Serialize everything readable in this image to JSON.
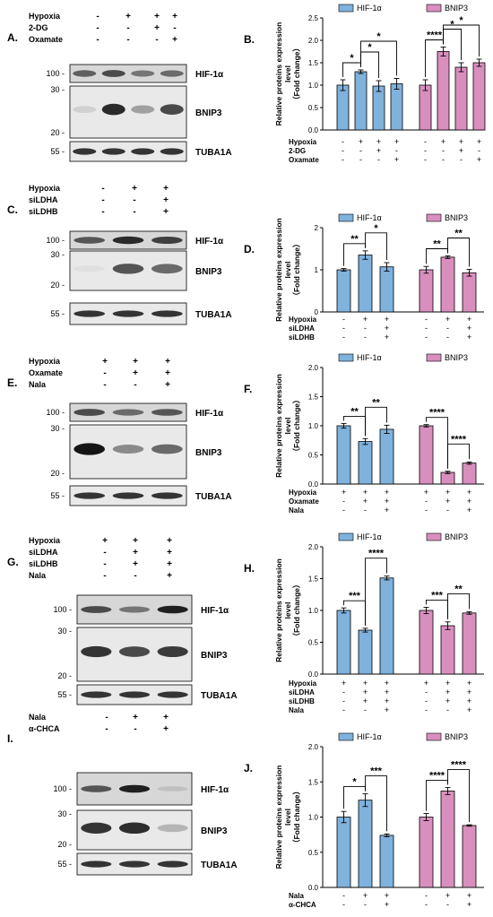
{
  "colors": {
    "hif": "#7fb2dc",
    "bnip": "#d98fbe",
    "ink": "#000000"
  },
  "labels": {
    "hif_legend": "HIF-1α",
    "bnip_legend": "BNIP3",
    "ylabel_main": "Relative proteins expression",
    "ylabel_level": "level",
    "ylabel_fold": "（Fold change）"
  },
  "blot_labels": {
    "hif": "HIF-1α",
    "bnip": "BNIP3",
    "tuba": "TUBA1A"
  },
  "panels": [
    {
      "letter": "A.",
      "chart_letter": "B.",
      "conditions": [
        {
          "name": "Hypoxia",
          "signs": [
            "-",
            "+",
            "+",
            "+"
          ]
        },
        {
          "name": "2-DG",
          "signs": [
            "-",
            "-",
            "+",
            "-"
          ]
        },
        {
          "name": "Oxamate",
          "signs": [
            "-",
            "-",
            "-",
            "+"
          ]
        }
      ],
      "markers": {
        "hif": "100",
        "bnip_hi": "30",
        "bnip_lo": "20",
        "tuba": "55"
      }
    },
    {
      "letter": "C.",
      "chart_letter": "D.",
      "conditions": [
        {
          "name": "Hypoxia",
          "signs": [
            "-",
            "+",
            "+"
          ]
        },
        {
          "name": "siLDHA",
          "signs": [
            "-",
            "-",
            "+"
          ]
        },
        {
          "name": "siLDHB",
          "signs": [
            "-",
            "-",
            "+"
          ]
        }
      ],
      "markers": {
        "hif": "100",
        "bnip_hi": "30",
        "bnip_lo": "20",
        "tuba": "55"
      }
    },
    {
      "letter": "E.",
      "chart_letter": "F.",
      "conditions": [
        {
          "name": "Hypoxia",
          "signs": [
            "+",
            "+",
            "+"
          ]
        },
        {
          "name": "Oxamate",
          "signs": [
            "-",
            "+",
            "+"
          ]
        },
        {
          "name": "Nala",
          "signs": [
            "-",
            "-",
            "+"
          ]
        }
      ],
      "markers": {
        "hif": "100",
        "bnip_hi": "30",
        "bnip_lo": "20",
        "tuba": "55"
      }
    },
    {
      "letter": "G.",
      "chart_letter": "H.",
      "conditions": [
        {
          "name": "Hypoxia",
          "signs": [
            "+",
            "+",
            "+"
          ]
        },
        {
          "name": "siLDHA",
          "signs": [
            "-",
            "+",
            "+"
          ]
        },
        {
          "name": "siLDHB",
          "signs": [
            "-",
            "+",
            "+"
          ]
        },
        {
          "name": "Nala",
          "signs": [
            "-",
            "-",
            "+"
          ]
        }
      ],
      "markers": {
        "hif": "100",
        "bnip_hi": "30",
        "bnip_lo": "20",
        "tuba": "55"
      }
    },
    {
      "letter": "I.",
      "chart_letter": "J.",
      "conditions": [
        {
          "name": "Nala",
          "signs": [
            "-",
            "+",
            "+"
          ]
        },
        {
          "name": "α-CHCA",
          "signs": [
            "-",
            "-",
            "+"
          ]
        }
      ],
      "markers": {
        "hif": "100",
        "bnip_hi": "30",
        "bnip_lo": "20",
        "tuba": "55"
      }
    }
  ],
  "chart_data": [
    {
      "type": "bar",
      "panel": "B",
      "ylim": [
        0,
        2.5
      ],
      "yticks": [
        "0.0",
        "0.5",
        "1.0",
        "1.5",
        "2.0",
        "2.5"
      ],
      "series": [
        {
          "name": "HIF-1α",
          "values": [
            1.0,
            1.3,
            0.98,
            1.03
          ],
          "errors": [
            0.12,
            0.04,
            0.12,
            0.12
          ]
        },
        {
          "name": "BNIP3",
          "values": [
            1.0,
            1.75,
            1.4,
            1.5
          ],
          "errors": [
            0.12,
            0.1,
            0.1,
            0.08
          ]
        }
      ],
      "sig": [
        {
          "s": 0,
          "from": 0,
          "to": 1,
          "label": "*"
        },
        {
          "s": 0,
          "from": 1,
          "to": 2,
          "label": "*"
        },
        {
          "s": 0,
          "from": 1,
          "to": 3,
          "label": "*"
        },
        {
          "s": 1,
          "from": 0,
          "to": 1,
          "label": "****"
        },
        {
          "s": 1,
          "from": 1,
          "to": 2,
          "label": "*"
        },
        {
          "s": 1,
          "from": 1,
          "to": 3,
          "label": "*"
        }
      ],
      "conditions": [
        {
          "name": "Hypoxia",
          "signs": [
            "-",
            "+",
            "+",
            "+"
          ]
        },
        {
          "name": "2-DG",
          "signs": [
            "-",
            "-",
            "+",
            "-"
          ]
        },
        {
          "name": "Oxamate",
          "signs": [
            "-",
            "-",
            "-",
            "+"
          ]
        }
      ]
    },
    {
      "type": "bar",
      "panel": "D",
      "ylim": [
        0,
        2
      ],
      "yticks": [
        "0",
        "1",
        "2"
      ],
      "series": [
        {
          "name": "HIF-1α",
          "values": [
            1.0,
            1.35,
            1.07
          ],
          "errors": [
            0.03,
            0.1,
            0.1
          ]
        },
        {
          "name": "BNIP3",
          "values": [
            1.0,
            1.3,
            0.93
          ],
          "errors": [
            0.08,
            0.03,
            0.08
          ]
        }
      ],
      "sig": [
        {
          "s": 0,
          "from": 0,
          "to": 1,
          "label": "**"
        },
        {
          "s": 0,
          "from": 1,
          "to": 2,
          "label": "*"
        },
        {
          "s": 1,
          "from": 0,
          "to": 1,
          "label": "**"
        },
        {
          "s": 1,
          "from": 1,
          "to": 2,
          "label": "**"
        }
      ],
      "conditions": [
        {
          "name": "Hypoxia",
          "signs": [
            "-",
            "+",
            "+"
          ]
        },
        {
          "name": "siLDHA",
          "signs": [
            "-",
            "-",
            "+"
          ]
        },
        {
          "name": "siLDHB",
          "signs": [
            "-",
            "-",
            "+"
          ]
        }
      ]
    },
    {
      "type": "bar",
      "panel": "F",
      "ylim": [
        0,
        2.0
      ],
      "yticks": [
        "0.0",
        "0.5",
        "1.0",
        "1.5",
        "2.0"
      ],
      "series": [
        {
          "name": "HIF-1α",
          "values": [
            1.0,
            0.73,
            0.94
          ],
          "errors": [
            0.04,
            0.05,
            0.07
          ]
        },
        {
          "name": "BNIP3",
          "values": [
            1.0,
            0.2,
            0.36
          ],
          "errors": [
            0.02,
            0.02,
            0.02
          ]
        }
      ],
      "sig": [
        {
          "s": 0,
          "from": 0,
          "to": 1,
          "label": "**"
        },
        {
          "s": 0,
          "from": 1,
          "to": 2,
          "label": "**"
        },
        {
          "s": 1,
          "from": 0,
          "to": 1,
          "label": "****"
        },
        {
          "s": 1,
          "from": 1,
          "to": 2,
          "label": "****"
        }
      ],
      "conditions": [
        {
          "name": "Hypoxia",
          "signs": [
            "+",
            "+",
            "+"
          ]
        },
        {
          "name": "Oxamate",
          "signs": [
            "-",
            "+",
            "+"
          ]
        },
        {
          "name": "Nala",
          "signs": [
            "-",
            "-",
            "+"
          ]
        }
      ]
    },
    {
      "type": "bar",
      "panel": "H",
      "ylim": [
        0,
        2.0
      ],
      "yticks": [
        "0.0",
        "0.5",
        "1.0",
        "1.5",
        "2.0"
      ],
      "series": [
        {
          "name": "HIF-1α",
          "values": [
            1.0,
            0.69,
            1.51
          ],
          "errors": [
            0.04,
            0.03,
            0.03
          ]
        },
        {
          "name": "BNIP3",
          "values": [
            1.0,
            0.76,
            0.96
          ],
          "errors": [
            0.05,
            0.06,
            0.02
          ]
        }
      ],
      "sig": [
        {
          "s": 0,
          "from": 0,
          "to": 1,
          "label": "***"
        },
        {
          "s": 0,
          "from": 1,
          "to": 2,
          "label": "****"
        },
        {
          "s": 1,
          "from": 0,
          "to": 1,
          "label": "***"
        },
        {
          "s": 1,
          "from": 1,
          "to": 2,
          "label": "**"
        }
      ],
      "conditions": [
        {
          "name": "Hypoxia",
          "signs": [
            "+",
            "+",
            "+"
          ]
        },
        {
          "name": "siLDHA",
          "signs": [
            "-",
            "+",
            "+"
          ]
        },
        {
          "name": "siLDHB",
          "signs": [
            "-",
            "+",
            "+"
          ]
        },
        {
          "name": "Nala",
          "signs": [
            "-",
            "-",
            "+"
          ]
        }
      ]
    },
    {
      "type": "bar",
      "panel": "J",
      "ylim": [
        0,
        2.0
      ],
      "yticks": [
        "0.0",
        "0.5",
        "1.0",
        "1.5",
        "2.0"
      ],
      "series": [
        {
          "name": "HIF-1α",
          "values": [
            1.0,
            1.24,
            0.74
          ],
          "errors": [
            0.08,
            0.09,
            0.02
          ]
        },
        {
          "name": "BNIP3",
          "values": [
            1.0,
            1.37,
            0.88
          ],
          "errors": [
            0.05,
            0.05,
            0.01
          ]
        }
      ],
      "sig": [
        {
          "s": 0,
          "from": 0,
          "to": 1,
          "label": "*"
        },
        {
          "s": 0,
          "from": 1,
          "to": 2,
          "label": "***"
        },
        {
          "s": 1,
          "from": 0,
          "to": 1,
          "label": "****"
        },
        {
          "s": 1,
          "from": 1,
          "to": 2,
          "label": "****"
        }
      ],
      "conditions": [
        {
          "name": "Nala",
          "signs": [
            "-",
            "+",
            "+"
          ]
        },
        {
          "name": "α-CHCA",
          "signs": [
            "-",
            "-",
            "+"
          ]
        }
      ]
    }
  ],
  "blot_intensity": [
    {
      "hif": [
        0.65,
        0.75,
        0.55,
        0.6
      ],
      "bnip": [
        0.12,
        0.9,
        0.35,
        0.75
      ],
      "tuba": [
        0.85,
        0.85,
        0.85,
        0.85
      ]
    },
    {
      "hif": [
        0.7,
        0.9,
        0.8
      ],
      "bnip": [
        0.05,
        0.7,
        0.6
      ],
      "tuba": [
        0.85,
        0.85,
        0.85
      ]
    },
    {
      "hif": [
        0.75,
        0.6,
        0.7
      ],
      "bnip": [
        1.0,
        0.45,
        0.6
      ],
      "tuba": [
        0.85,
        0.85,
        0.85
      ]
    },
    {
      "hif": [
        0.75,
        0.55,
        0.95
      ],
      "bnip": [
        0.85,
        0.75,
        0.82
      ],
      "tuba": [
        0.85,
        0.85,
        0.85
      ]
    },
    {
      "hif": [
        0.7,
        0.95,
        0.2
      ],
      "bnip": [
        0.85,
        0.88,
        0.25
      ],
      "tuba": [
        0.85,
        0.85,
        0.85
      ]
    }
  ]
}
